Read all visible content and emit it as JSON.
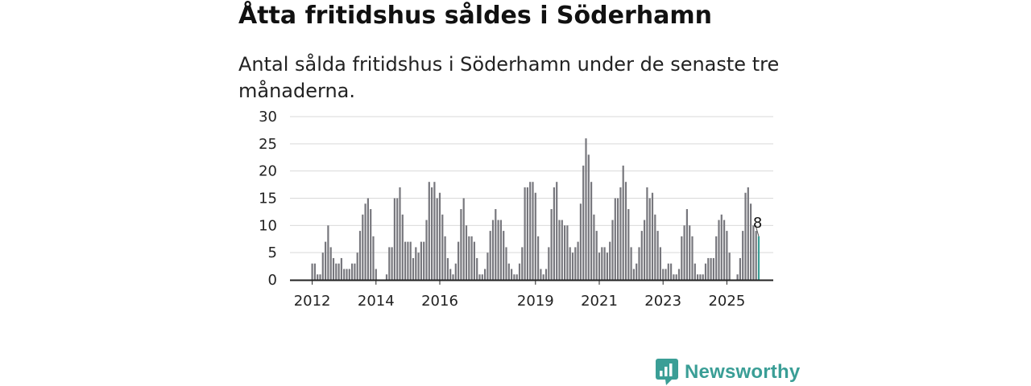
{
  "title": "Åtta fritidshus såldes i Söderhamn",
  "subtitle": "Antal sålda fritidshus i Söderhamn under de senaste tre månaderna.",
  "brand": {
    "name": "Newsworthy",
    "color": "#3a9e96"
  },
  "chart_data": {
    "type": "bar",
    "title": "Åtta fritidshus såldes i Söderhamn",
    "subtitle": "Antal sålda fritidshus i Söderhamn under de senaste tre månaderna.",
    "xlabel": "",
    "ylabel": "",
    "ylim": [
      0,
      30
    ],
    "yticks": [
      0,
      5,
      10,
      15,
      20,
      25,
      30
    ],
    "grid": true,
    "x_start": "2012-01",
    "x_tick_labels": [
      "2012",
      "2014",
      "2016",
      "2019",
      "2021",
      "2023",
      "2025"
    ],
    "bar_color": "#77777d",
    "highlight_color": "#3a9e96",
    "highlight_label": "8",
    "values": [
      3,
      3,
      1,
      1,
      5,
      7,
      10,
      6,
      4,
      3,
      3,
      4,
      2,
      2,
      2,
      3,
      3,
      5,
      9,
      12,
      14,
      15,
      13,
      8,
      2,
      0,
      0,
      0,
      1,
      6,
      6,
      15,
      15,
      17,
      12,
      7,
      7,
      7,
      4,
      6,
      5,
      7,
      7,
      11,
      18,
      17,
      18,
      15,
      16,
      12,
      8,
      4,
      2,
      1,
      3,
      7,
      13,
      15,
      10,
      8,
      8,
      7,
      4,
      1,
      1,
      2,
      5,
      9,
      11,
      13,
      11,
      11,
      9,
      6,
      3,
      2,
      1,
      1,
      3,
      6,
      17,
      17,
      18,
      18,
      16,
      8,
      2,
      1,
      2,
      6,
      13,
      17,
      18,
      11,
      11,
      10,
      10,
      6,
      5,
      6,
      7,
      14,
      21,
      26,
      23,
      18,
      12,
      9,
      5,
      6,
      6,
      5,
      7,
      11,
      15,
      15,
      17,
      21,
      18,
      13,
      6,
      2,
      3,
      6,
      9,
      11,
      17,
      15,
      16,
      12,
      9,
      6,
      2,
      2,
      3,
      3,
      1,
      1,
      2,
      8,
      10,
      13,
      10,
      8,
      3,
      1,
      1,
      1,
      3,
      4,
      4,
      4,
      8,
      11,
      12,
      11,
      9,
      5,
      0,
      0,
      1,
      4,
      9,
      16,
      17,
      14,
      10,
      9,
      8
    ],
    "highlight_index": 168
  }
}
